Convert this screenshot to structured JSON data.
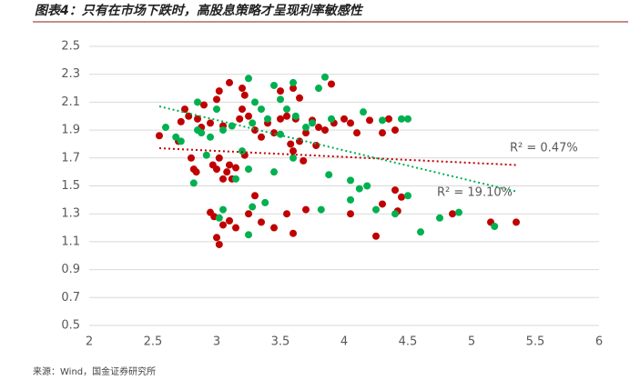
{
  "chart_data": {
    "type": "scatter",
    "title": "图表4：只有在市场下跌时，高股息策略才呈现利率敏感性",
    "source": "来源：Wind，国金证券研究所",
    "xlim": [
      2,
      6
    ],
    "xticks": [
      2,
      2.5,
      3,
      3.5,
      4,
      4.5,
      5,
      5.5,
      6
    ],
    "ylim": [
      0.5,
      2.5
    ],
    "yticks": [
      0.5,
      0.7,
      0.9,
      1.1,
      1.3,
      1.5,
      1.7,
      1.9,
      2.1,
      2.3,
      2.5
    ],
    "grid": true,
    "series": [
      {
        "color": "#c00000",
        "trend_color": "#c00000",
        "r2": "R² = 0.47%",
        "trendline": {
          "x": [
            2.55,
            5.35
          ],
          "y": [
            1.77,
            1.65
          ]
        },
        "x": [
          2.55,
          2.7,
          2.72,
          2.75,
          2.78,
          2.8,
          2.82,
          2.84,
          2.85,
          2.88,
          2.9,
          2.95,
          2.97,
          3.0,
          3.02,
          3.05,
          3.08,
          3.1,
          3.12,
          3.15,
          3.18,
          3.2,
          3.22,
          3.25,
          3.3,
          3.35,
          3.4,
          3.45,
          3.5,
          3.55,
          3.58,
          3.6,
          3.62,
          3.65,
          3.7,
          3.75,
          3.8,
          3.85,
          3.9,
          3.92,
          4.0,
          4.05,
          4.1,
          4.2,
          4.3,
          4.35,
          4.4,
          3.0,
          3.02,
          3.1,
          3.2,
          3.5,
          3.6,
          3.65,
          2.95,
          2.98,
          3.0,
          3.02,
          3.05,
          3.1,
          3.15,
          3.25,
          3.35,
          3.45,
          3.55,
          3.6,
          3.7,
          4.05,
          4.25,
          4.3,
          4.4,
          4.42,
          4.45,
          4.85,
          5.15,
          5.35,
          3.05,
          3.22,
          3.3,
          3.68,
          3.78
        ],
        "values": [
          1.86,
          1.82,
          1.96,
          2.05,
          2.0,
          1.7,
          1.62,
          1.6,
          1.98,
          1.92,
          2.08,
          1.95,
          1.65,
          1.62,
          1.7,
          1.93,
          1.6,
          1.65,
          1.55,
          1.63,
          1.98,
          2.05,
          2.15,
          2.0,
          1.9,
          1.85,
          1.95,
          1.88,
          1.98,
          2.0,
          1.8,
          1.75,
          1.98,
          1.82,
          1.88,
          1.97,
          1.92,
          1.9,
          2.23,
          1.95,
          1.98,
          1.95,
          1.88,
          1.97,
          1.88,
          1.98,
          1.9,
          2.12,
          2.18,
          2.24,
          2.2,
          2.18,
          2.2,
          2.13,
          1.31,
          1.28,
          1.13,
          1.08,
          1.22,
          1.25,
          1.2,
          1.3,
          1.24,
          1.2,
          1.3,
          1.16,
          1.33,
          1.3,
          1.14,
          1.37,
          1.47,
          1.32,
          1.42,
          1.3,
          1.24,
          1.24,
          1.55,
          1.72,
          1.43,
          1.68,
          1.79
        ]
      },
      {
        "color": "#00b050",
        "trend_color": "#00b050",
        "r2": "R² = 19.10%",
        "trendline": {
          "x": [
            2.55,
            5.35
          ],
          "y": [
            2.07,
            1.46
          ]
        },
        "x": [
          2.6,
          2.68,
          2.72,
          2.82,
          2.85,
          2.88,
          2.92,
          3.0,
          3.05,
          3.12,
          3.2,
          3.25,
          3.28,
          3.3,
          3.35,
          3.4,
          3.45,
          3.5,
          3.55,
          3.6,
          3.62,
          3.7,
          3.75,
          3.8,
          3.85,
          3.9,
          4.15,
          4.3,
          4.45,
          4.5,
          2.95,
          3.15,
          3.25,
          3.28,
          3.38,
          3.82,
          4.05,
          4.05,
          4.12,
          4.18,
          4.25,
          4.4,
          4.5,
          4.6,
          4.75,
          4.9,
          5.18,
          3.05,
          3.25,
          3.02,
          3.5,
          3.6,
          3.88,
          2.85,
          3.45
        ],
        "values": [
          1.92,
          1.85,
          1.82,
          1.52,
          2.1,
          1.88,
          1.72,
          2.05,
          1.9,
          1.93,
          1.75,
          2.27,
          1.95,
          2.1,
          2.05,
          1.98,
          2.22,
          2.12,
          2.05,
          2.24,
          2.0,
          1.92,
          1.95,
          2.2,
          2.28,
          1.98,
          2.03,
          1.97,
          1.98,
          1.98,
          1.85,
          1.55,
          1.62,
          1.35,
          1.38,
          1.33,
          1.4,
          1.54,
          1.48,
          1.5,
          1.33,
          1.3,
          1.43,
          1.17,
          1.27,
          1.31,
          1.21,
          1.33,
          1.15,
          1.27,
          1.87,
          1.7,
          1.58,
          1.9,
          1.6
        ]
      }
    ]
  }
}
